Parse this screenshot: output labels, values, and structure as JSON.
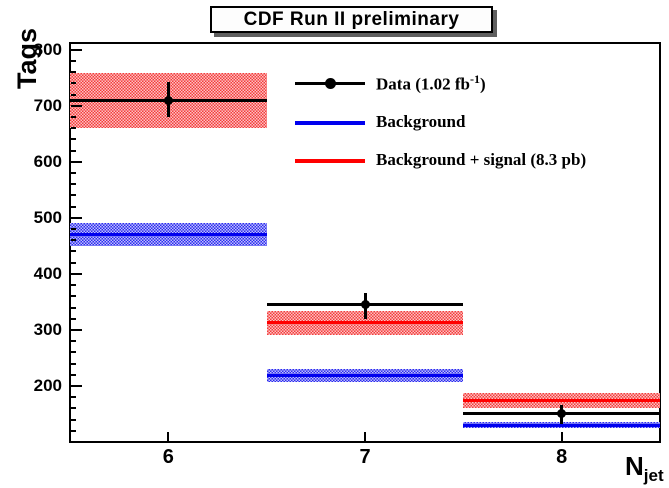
{
  "chart_data": {
    "type": "bar",
    "subtype": "histogram-with-uncertainty-bands",
    "title": "CDF Run II preliminary",
    "ylabel": "Tags",
    "xlabel_base": "N",
    "xlabel_sub": "jet",
    "xlim": [
      5.5,
      8.5
    ],
    "ylim": [
      100,
      812
    ],
    "xticks": [
      "6",
      "7",
      "8"
    ],
    "yticks": [
      200,
      300,
      400,
      500,
      600,
      700,
      800
    ],
    "y_minor_step": 20,
    "grid": false,
    "legend_position": "upper-right-inside",
    "bin_edges": [
      5.5,
      6.5,
      7.5,
      8.5
    ],
    "categories": [
      6,
      7,
      8
    ],
    "series": [
      {
        "name": "Data (1.02 fb^-1)",
        "type": "points_with_hist_line",
        "x": [
          6,
          7,
          8
        ],
        "y": [
          710,
          345,
          150
        ],
        "err_up": [
          32,
          20,
          16
        ],
        "err_down": [
          30,
          25,
          18
        ],
        "color": "#000000"
      },
      {
        "name": "Background",
        "type": "band",
        "center": [
          470,
          219,
          130
        ],
        "lo": [
          450,
          207,
          125
        ],
        "hi": [
          490,
          230,
          136
        ],
        "color": "#0000ee"
      },
      {
        "name": "Background + signal (8.3 pb)",
        "type": "band",
        "center": [
          710,
          313,
          174
        ],
        "lo": [
          660,
          291,
          161
        ],
        "hi": [
          758,
          334,
          188
        ],
        "color": "#ff0000"
      }
    ],
    "legend": [
      {
        "key": "data",
        "pre": "Data (1.02 fb",
        "sup": "-1",
        "post": ")",
        "color": "#000000"
      },
      {
        "key": "background",
        "pre": "Background",
        "sup": "",
        "post": "",
        "color": "#0000ee"
      },
      {
        "key": "signal",
        "pre": "Background + signal (8.3 pb)",
        "sup": "",
        "post": "",
        "color": "#ff0000"
      }
    ],
    "colors": {
      "data": "#000000",
      "background": "#0000ee",
      "signal": "#ff0000",
      "frame": "#000000",
      "pave_shadow": "#5f5f5f"
    }
  }
}
